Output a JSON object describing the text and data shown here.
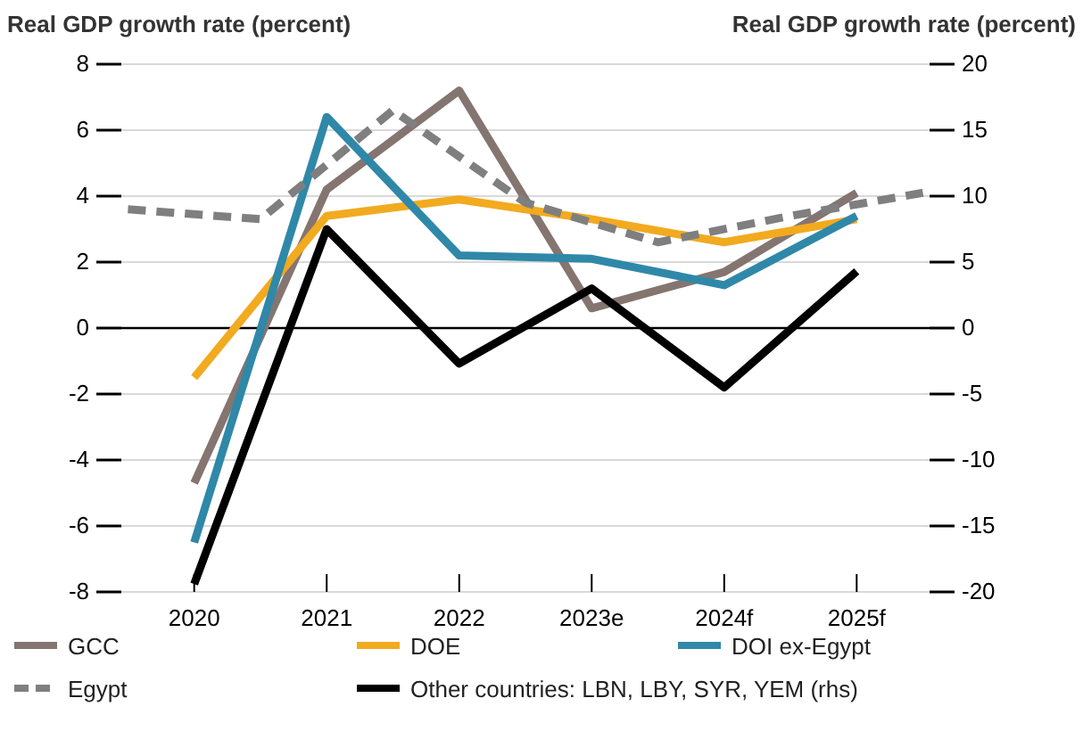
{
  "chart_data": {
    "type": "line",
    "ylabel": "Real GDP growth rate (percent)",
    "y2label": "Real GDP growth rate (percent)",
    "xlim": [
      2019.45,
      2025.55
    ],
    "xticks": [
      {
        "value": 2020,
        "label": "2020"
      },
      {
        "value": 2021,
        "label": "2021"
      },
      {
        "value": 2022,
        "label": "2022"
      },
      {
        "value": 2023,
        "label": "2023e"
      },
      {
        "value": 2024,
        "label": "2024f"
      },
      {
        "value": 2025,
        "label": "2025f"
      }
    ],
    "ylim": [
      -8,
      8
    ],
    "yticks": [
      -8,
      -6,
      -4,
      -2,
      0,
      2,
      4,
      6,
      8
    ],
    "y2lim": [
      -20,
      20
    ],
    "y2ticks": [
      -20,
      -15,
      -10,
      -5,
      0,
      5,
      10,
      15,
      20
    ],
    "grid": "y",
    "legend": "bottom",
    "marker": "none",
    "ref_lines": [
      {
        "axis": "y",
        "value": 0,
        "color": "#000000"
      }
    ],
    "series": [
      {
        "name": "GCC",
        "color": "#857571",
        "x": [
          2020,
          2021,
          2022,
          2023,
          2024,
          2025
        ],
        "values": [
          -4.7,
          4.2,
          7.2,
          0.6,
          1.7,
          4.1
        ]
      },
      {
        "name": "DOE",
        "color": "#f2aa1f",
        "x": [
          2020,
          2021,
          2022,
          2023,
          2024,
          2025
        ],
        "values": [
          -1.5,
          3.4,
          3.9,
          3.3,
          2.6,
          3.3
        ]
      },
      {
        "name": "DOI ex-Egypt",
        "color": "#2f88a8",
        "x": [
          2020,
          2021,
          2022,
          2023,
          2024,
          2025
        ],
        "values": [
          -6.5,
          6.4,
          2.2,
          2.1,
          1.3,
          3.4
        ]
      },
      {
        "name": "Egypt",
        "color": "#7f7f7f",
        "line_style": "dashed",
        "x": [
          2019.5,
          2020.5,
          2021.5,
          2022.5,
          2023.5,
          2024.5,
          2025.5
        ],
        "values": [
          3.6,
          3.3,
          6.6,
          3.8,
          2.6,
          3.4,
          4.1
        ]
      },
      {
        "name": "Other countries: LBN, LBY, SYR, YEM (rhs)",
        "color": "#000000",
        "axis": "y2",
        "x": [
          2020,
          2021,
          2022,
          2023,
          2024,
          2025
        ],
        "values": [
          -19.4,
          7.5,
          -2.7,
          3.0,
          -4.5,
          4.3
        ]
      }
    ]
  }
}
